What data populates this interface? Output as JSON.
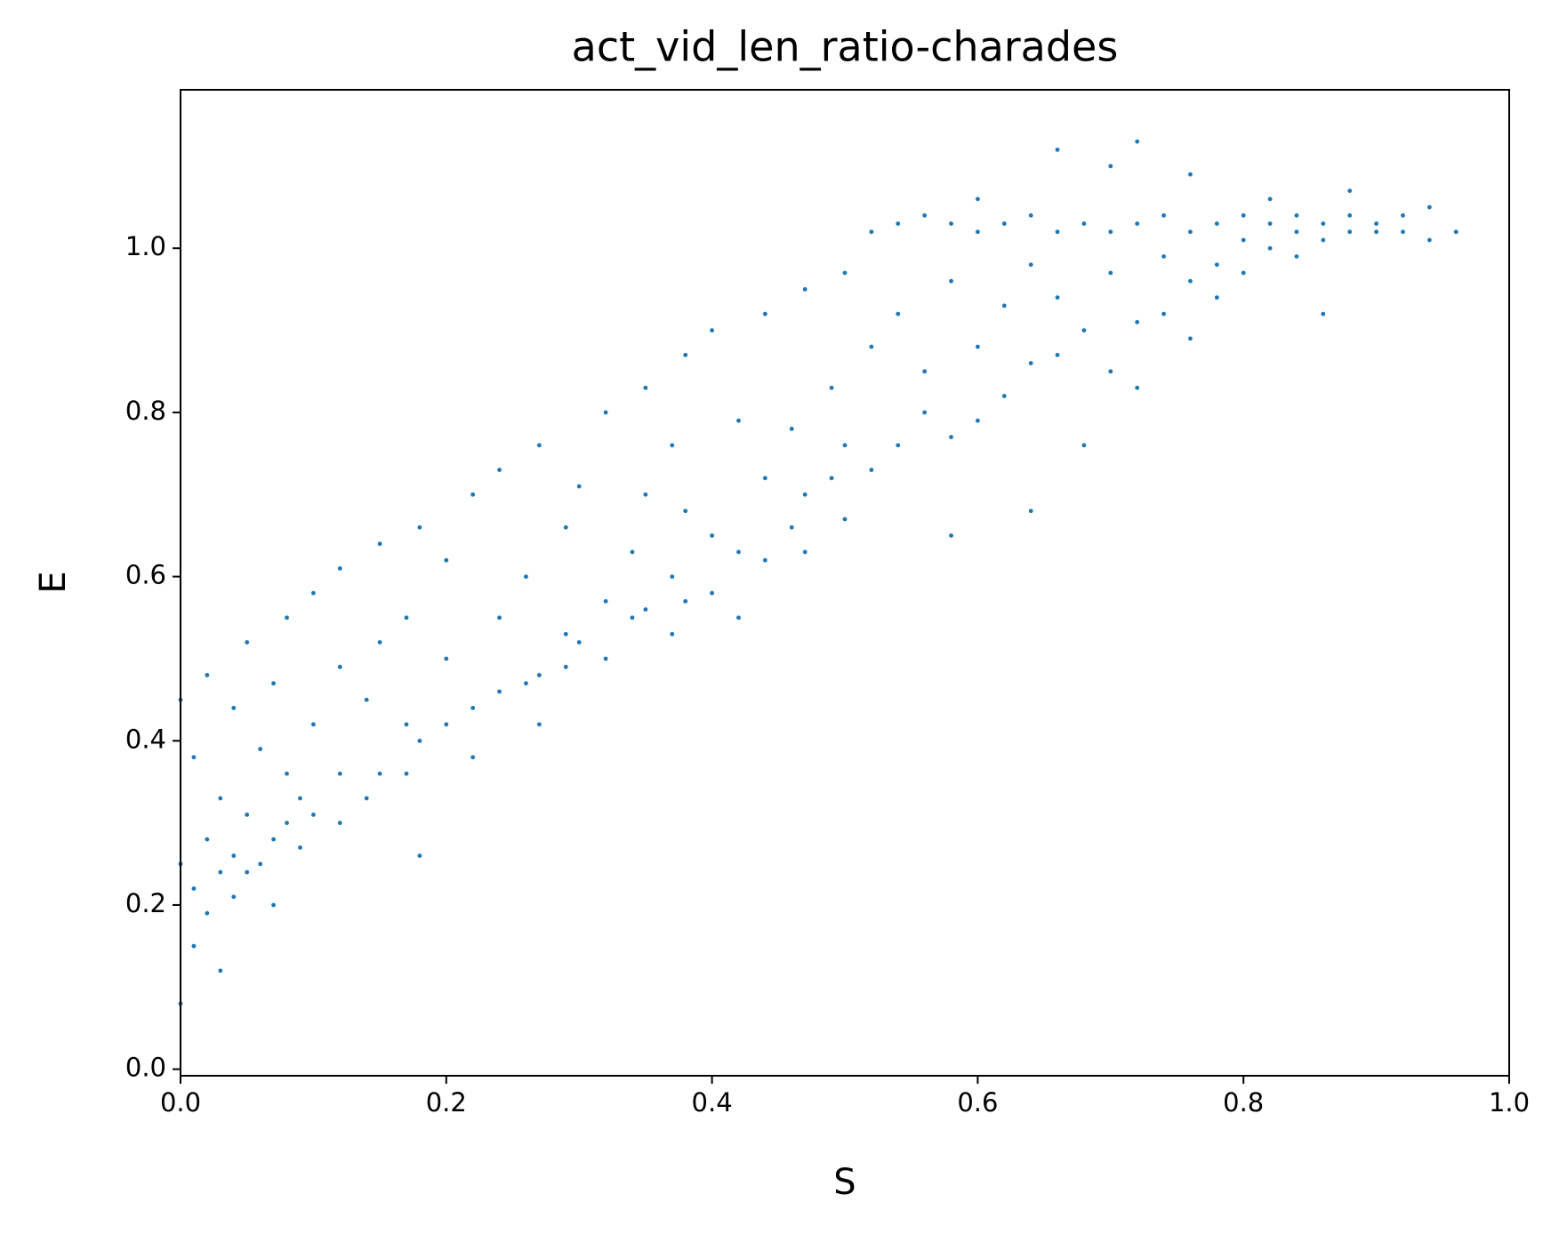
{
  "chart_data": {
    "type": "scatter",
    "title": "act_vid_len_ratio-charades",
    "xlabel": "S",
    "ylabel": "E",
    "color": "#1f77b4",
    "xlim": [
      0,
      1
    ],
    "ylim": [
      -0.008,
      1.193
    ],
    "xticks": [
      {
        "value": 0,
        "label": "0.0"
      },
      {
        "value": 0.2,
        "label": "0.2"
      },
      {
        "value": 0.4,
        "label": "0.4"
      },
      {
        "value": 0.6,
        "label": "0.6"
      },
      {
        "value": 0.8,
        "label": "0.8"
      },
      {
        "value": 1,
        "label": "1.0"
      }
    ],
    "yticks": [
      {
        "value": 0,
        "label": "0.0"
      },
      {
        "value": 0.2,
        "label": "0.2"
      },
      {
        "value": 0.4,
        "label": "0.4"
      },
      {
        "value": 0.6,
        "label": "0.6"
      },
      {
        "value": 0.8,
        "label": "0.8"
      },
      {
        "value": 1,
        "label": "1.0"
      }
    ],
    "x": [
      0,
      0,
      0,
      0.01,
      0.01,
      0.01,
      0.02,
      0.02,
      0.02,
      0.03,
      0.03,
      0.03,
      0.04,
      0.04,
      0.04,
      0.05,
      0.05,
      0.05,
      0.06,
      0.06,
      0.07,
      0.07,
      0.07,
      0.08,
      0.08,
      0.08,
      0.09,
      0.09,
      0.1,
      0.1,
      0.1,
      0.12,
      0.12,
      0.12,
      0.12,
      0.14,
      0.14,
      0.15,
      0.15,
      0.15,
      0.17,
      0.17,
      0.17,
      0.18,
      0.18,
      0.18,
      0.2,
      0.2,
      0.2,
      0.22,
      0.22,
      0.22,
      0.24,
      0.24,
      0.24,
      0.26,
      0.26,
      0.27,
      0.27,
      0.27,
      0.29,
      0.29,
      0.29,
      0.3,
      0.3,
      0.32,
      0.32,
      0.32,
      0.34,
      0.34,
      0.35,
      0.35,
      0.35,
      0.37,
      0.37,
      0.37,
      0.38,
      0.38,
      0.38,
      0.4,
      0.4,
      0.4,
      0.42,
      0.42,
      0.42,
      0.44,
      0.44,
      0.44,
      0.46,
      0.46,
      0.47,
      0.47,
      0.47,
      0.49,
      0.49,
      0.5,
      0.5,
      0.5,
      0.52,
      0.52,
      0.52,
      0.54,
      0.54,
      0.54,
      0.56,
      0.56,
      0.56,
      0.58,
      0.58,
      0.58,
      0.58,
      0.6,
      0.6,
      0.6,
      0.6,
      0.62,
      0.62,
      0.62,
      0.64,
      0.64,
      0.64,
      0.64,
      0.66,
      0.66,
      0.66,
      0.66,
      0.68,
      0.68,
      0.68,
      0.7,
      0.7,
      0.7,
      0.7,
      0.72,
      0.72,
      0.72,
      0.72,
      0.74,
      0.74,
      0.74,
      0.76,
      0.76,
      0.76,
      0.76,
      0.78,
      0.78,
      0.78,
      0.8,
      0.8,
      0.8,
      0.82,
      0.82,
      0.82,
      0.84,
      0.84,
      0.84,
      0.86,
      0.86,
      0.86,
      0.88,
      0.88,
      0.88,
      0.9,
      0.9,
      0.92,
      0.92,
      0.94,
      0.94,
      0.96
    ],
    "y": [
      0.08,
      0.25,
      0.45,
      0.15,
      0.22,
      0.38,
      0.19,
      0.28,
      0.48,
      0.12,
      0.24,
      0.33,
      0.21,
      0.26,
      0.44,
      0.24,
      0.31,
      0.52,
      0.25,
      0.39,
      0.2,
      0.28,
      0.47,
      0.3,
      0.36,
      0.55,
      0.27,
      0.33,
      0.31,
      0.42,
      0.58,
      0.3,
      0.36,
      0.49,
      0.61,
      0.33,
      0.45,
      0.36,
      0.52,
      0.64,
      0.36,
      0.42,
      0.55,
      0.26,
      0.4,
      0.66,
      0.42,
      0.5,
      0.62,
      0.38,
      0.44,
      0.7,
      0.46,
      0.55,
      0.73,
      0.47,
      0.6,
      0.42,
      0.48,
      0.76,
      0.49,
      0.53,
      0.66,
      0.52,
      0.71,
      0.5,
      0.57,
      0.8,
      0.55,
      0.63,
      0.56,
      0.7,
      0.83,
      0.53,
      0.6,
      0.76,
      0.57,
      0.68,
      0.87,
      0.58,
      0.65,
      0.9,
      0.55,
      0.63,
      0.79,
      0.62,
      0.72,
      0.92,
      0.66,
      0.78,
      0.63,
      0.7,
      0.95,
      0.72,
      0.83,
      0.67,
      0.76,
      0.97,
      0.73,
      0.88,
      1.02,
      0.76,
      0.92,
      1.03,
      0.8,
      0.85,
      1.04,
      0.65,
      0.77,
      0.96,
      1.03,
      0.79,
      0.88,
      1.02,
      1.06,
      0.82,
      0.93,
      1.03,
      0.68,
      0.86,
      0.98,
      1.04,
      0.87,
      0.94,
      1.02,
      1.12,
      0.76,
      0.9,
      1.03,
      0.85,
      0.97,
      1.02,
      1.1,
      0.83,
      0.91,
      1.03,
      1.13,
      0.92,
      0.99,
      1.04,
      0.89,
      0.96,
      1.02,
      1.09,
      0.94,
      0.98,
      1.03,
      0.97,
      1.01,
      1.04,
      1.0,
      1.03,
      1.06,
      0.99,
      1.02,
      1.04,
      0.92,
      1.01,
      1.03,
      1.02,
      1.04,
      1.07,
      1.02,
      1.03,
      1.02,
      1.04,
      1.01,
      1.05,
      1.02
    ]
  }
}
